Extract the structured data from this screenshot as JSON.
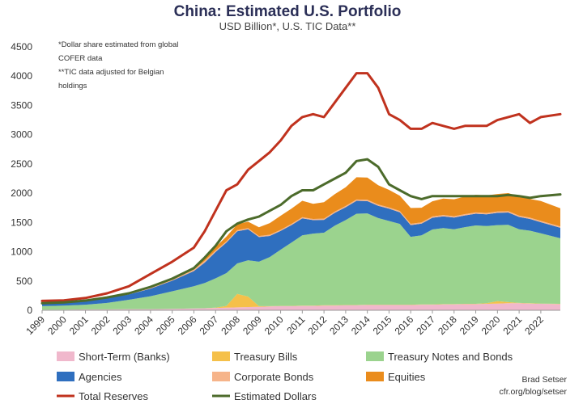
{
  "chart_data": {
    "type": "area",
    "title": "China: Estimated U.S. Portfolio",
    "subtitle": "USD Billion*, U.S. TIC Data**",
    "notes": [
      "*Dollar share estimated from global",
      "COFER data",
      "**TIC data adjusted for Belgian",
      "holdings"
    ],
    "credit": [
      "Brad Setser",
      "cfr.org/blog/setser"
    ],
    "xlim": [
      1999,
      2022.9
    ],
    "ylim": [
      0,
      4500
    ],
    "x_ticks": [
      "1999",
      "2000",
      "2001",
      "2002",
      "2003",
      "2004",
      "2005",
      "2006",
      "2007",
      "2008",
      "2009",
      "2010",
      "2011",
      "2012",
      "2013",
      "2014",
      "2015",
      "2016",
      "2017",
      "2018",
      "2019",
      "2020",
      "2021",
      "2022"
    ],
    "y_ticks": [
      "0",
      "500",
      "1000",
      "1500",
      "2000",
      "2500",
      "3000",
      "3500",
      "4000",
      "4500"
    ],
    "x": [
      1999,
      2000,
      2001,
      2002,
      2003,
      2004,
      2005,
      2006,
      2006.5,
      2007,
      2007.5,
      2008,
      2008.5,
      2009,
      2009.5,
      2010,
      2010.5,
      2011,
      2011.5,
      2012,
      2012.5,
      2013,
      2013.5,
      2014,
      2014.5,
      2015,
      2015.5,
      2016,
      2016.5,
      2017,
      2017.5,
      2018,
      2018.5,
      2019,
      2019.5,
      2020,
      2020.5,
      2021,
      2021.5,
      2022,
      2022.9
    ],
    "stacked_series": [
      {
        "name": "Short-Term (Banks)",
        "color": "#f0b8cc",
        "values": [
          10,
          10,
          15,
          15,
          20,
          20,
          25,
          30,
          35,
          40,
          45,
          50,
          55,
          60,
          65,
          70,
          70,
          75,
          75,
          80,
          80,
          85,
          85,
          90,
          90,
          90,
          90,
          90,
          95,
          95,
          100,
          100,
          105,
          105,
          110,
          115,
          120,
          120,
          115,
          110,
          105
        ]
      },
      {
        "name": "Treasury Bills",
        "color": "#f5c04a",
        "values": [
          0,
          0,
          0,
          0,
          0,
          0,
          0,
          0,
          0,
          5,
          30,
          230,
          180,
          10,
          5,
          5,
          5,
          5,
          5,
          5,
          5,
          5,
          5,
          5,
          5,
          5,
          5,
          5,
          5,
          5,
          5,
          5,
          5,
          5,
          10,
          40,
          20,
          5,
          5,
          5,
          5
        ]
      },
      {
        "name": "Treasury Notes and Bonds",
        "color": "#9bd38e",
        "values": [
          60,
          70,
          80,
          110,
          160,
          220,
          300,
          380,
          430,
          500,
          560,
          520,
          620,
          760,
          840,
          960,
          1080,
          1200,
          1230,
          1240,
          1360,
          1450,
          1560,
          1560,
          1480,
          1430,
          1380,
          1160,
          1180,
          1280,
          1300,
          1280,
          1310,
          1340,
          1320,
          1300,
          1320,
          1260,
          1240,
          1200,
          1120
        ]
      },
      {
        "name": "Agencies",
        "color": "#2f6fbf",
        "values": [
          40,
          50,
          60,
          80,
          90,
          130,
          180,
          260,
          350,
          450,
          520,
          550,
          530,
          420,
          360,
          320,
          300,
          290,
          230,
          220,
          220,
          220,
          220,
          210,
          210,
          210,
          200,
          200,
          200,
          200,
          200,
          200,
          200,
          200,
          200,
          210,
          210,
          210,
          200,
          190,
          180
        ]
      },
      {
        "name": "Corporate Bonds",
        "color": "#f6b48a",
        "values": [
          2,
          5,
          5,
          8,
          10,
          15,
          20,
          25,
          28,
          25,
          22,
          20,
          18,
          18,
          20,
          20,
          20,
          20,
          20,
          20,
          20,
          22,
          22,
          22,
          22,
          22,
          22,
          22,
          22,
          22,
          22,
          22,
          22,
          22,
          22,
          22,
          22,
          22,
          22,
          22,
          22
        ]
      },
      {
        "name": "Equities",
        "color": "#ea8c1c",
        "values": [
          0,
          0,
          0,
          0,
          0,
          5,
          10,
          20,
          40,
          60,
          80,
          100,
          110,
          150,
          200,
          240,
          260,
          280,
          260,
          280,
          300,
          320,
          380,
          380,
          330,
          300,
          260,
          270,
          250,
          260,
          280,
          290,
          300,
          300,
          300,
          300,
          310,
          330,
          320,
          340,
          310
        ]
      }
    ],
    "line_series": [
      {
        "name": "Total Reserves",
        "color": "#c0321e",
        "values": [
          160,
          170,
          210,
          290,
          410,
          620,
          830,
          1070,
          1350,
          1700,
          2050,
          2150,
          2400,
          2550,
          2700,
          2900,
          3150,
          3300,
          3350,
          3300,
          3550,
          3800,
          4050,
          4050,
          3800,
          3350,
          3250,
          3100,
          3100,
          3200,
          3150,
          3100,
          3150,
          3150,
          3150,
          3250,
          3300,
          3350,
          3200,
          3300,
          3350
        ]
      },
      {
        "name": "Estimated Dollars",
        "color": "#4c6b2b",
        "values": [
          120,
          135,
          165,
          220,
          290,
          400,
          540,
          720,
          900,
          1100,
          1350,
          1480,
          1550,
          1600,
          1700,
          1800,
          1950,
          2050,
          2050,
          2150,
          2250,
          2350,
          2550,
          2580,
          2450,
          2150,
          2050,
          1950,
          1900,
          1950,
          1950,
          1950,
          1950,
          1950,
          1950,
          1950,
          1970,
          1950,
          1920,
          1950,
          1980
        ]
      }
    ],
    "legend": [
      {
        "name": "Short-Term (Banks)",
        "color": "#f0b8cc",
        "kind": "box"
      },
      {
        "name": "Treasury Bills",
        "color": "#f5c04a",
        "kind": "box"
      },
      {
        "name": "Treasury Notes and Bonds",
        "color": "#9bd38e",
        "kind": "box"
      },
      {
        "name": "Agencies",
        "color": "#2f6fbf",
        "kind": "box"
      },
      {
        "name": "Corporate Bonds",
        "color": "#f6b48a",
        "kind": "box"
      },
      {
        "name": "Equities",
        "color": "#ea8c1c",
        "kind": "box"
      },
      {
        "name": "Total Reserves",
        "color": "#c0321e",
        "kind": "line"
      },
      {
        "name": "Estimated Dollars",
        "color": "#4c6b2b",
        "kind": "line"
      }
    ],
    "legend_position": "bottom",
    "grid": false
  }
}
